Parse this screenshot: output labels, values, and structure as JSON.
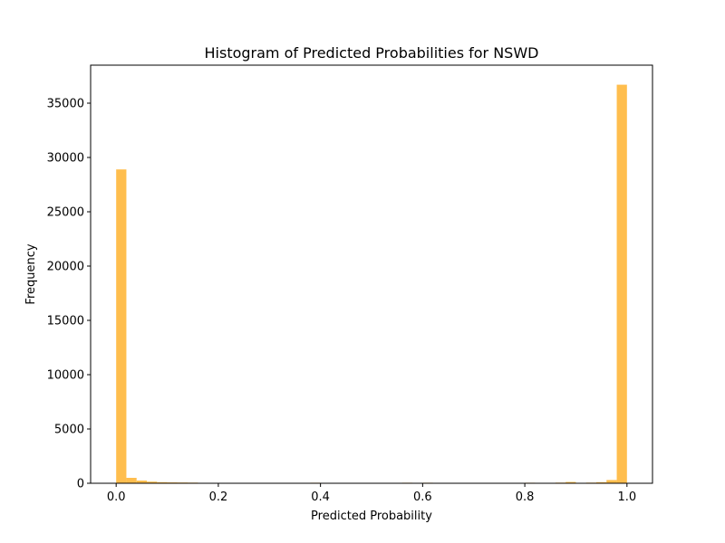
{
  "chart_data": {
    "type": "bar",
    "title": "Histogram of Predicted Probabilities for NSWD",
    "xlabel": "Predicted Probability",
    "ylabel": "Frequency",
    "xlim": [
      -0.05,
      1.05
    ],
    "ylim": [
      0,
      38500
    ],
    "xticks": [
      0.0,
      0.2,
      0.4,
      0.6,
      0.8,
      1.0
    ],
    "xtick_labels": [
      "0.0",
      "0.2",
      "0.4",
      "0.6",
      "0.8",
      "1.0"
    ],
    "yticks": [
      0,
      5000,
      10000,
      15000,
      20000,
      25000,
      30000,
      35000
    ],
    "ytick_labels": [
      "0",
      "5000",
      "10000",
      "15000",
      "20000",
      "25000",
      "30000",
      "35000"
    ],
    "bin_width": 0.02,
    "bin_starts": [
      0.0,
      0.02,
      0.04,
      0.06,
      0.08,
      0.1,
      0.12,
      0.14,
      0.16,
      0.18,
      0.2,
      0.22,
      0.24,
      0.26,
      0.28,
      0.3,
      0.32,
      0.34,
      0.36,
      0.38,
      0.4,
      0.42,
      0.44,
      0.46,
      0.48,
      0.5,
      0.52,
      0.54,
      0.56,
      0.58,
      0.6,
      0.62,
      0.64,
      0.66,
      0.68,
      0.7,
      0.72,
      0.74,
      0.76,
      0.78,
      0.8,
      0.82,
      0.84,
      0.86,
      0.88,
      0.9,
      0.92,
      0.94,
      0.96,
      0.98
    ],
    "values": [
      28900,
      500,
      250,
      150,
      100,
      80,
      70,
      60,
      30,
      20,
      20,
      15,
      10,
      10,
      10,
      10,
      10,
      10,
      20,
      50,
      20,
      10,
      10,
      10,
      10,
      10,
      10,
      10,
      50,
      30,
      50,
      40,
      20,
      10,
      10,
      10,
      10,
      10,
      10,
      20,
      50,
      20,
      40,
      60,
      120,
      30,
      60,
      100,
      300,
      36700
    ],
    "bar_color": "#ffbe4e",
    "grid": false
  }
}
